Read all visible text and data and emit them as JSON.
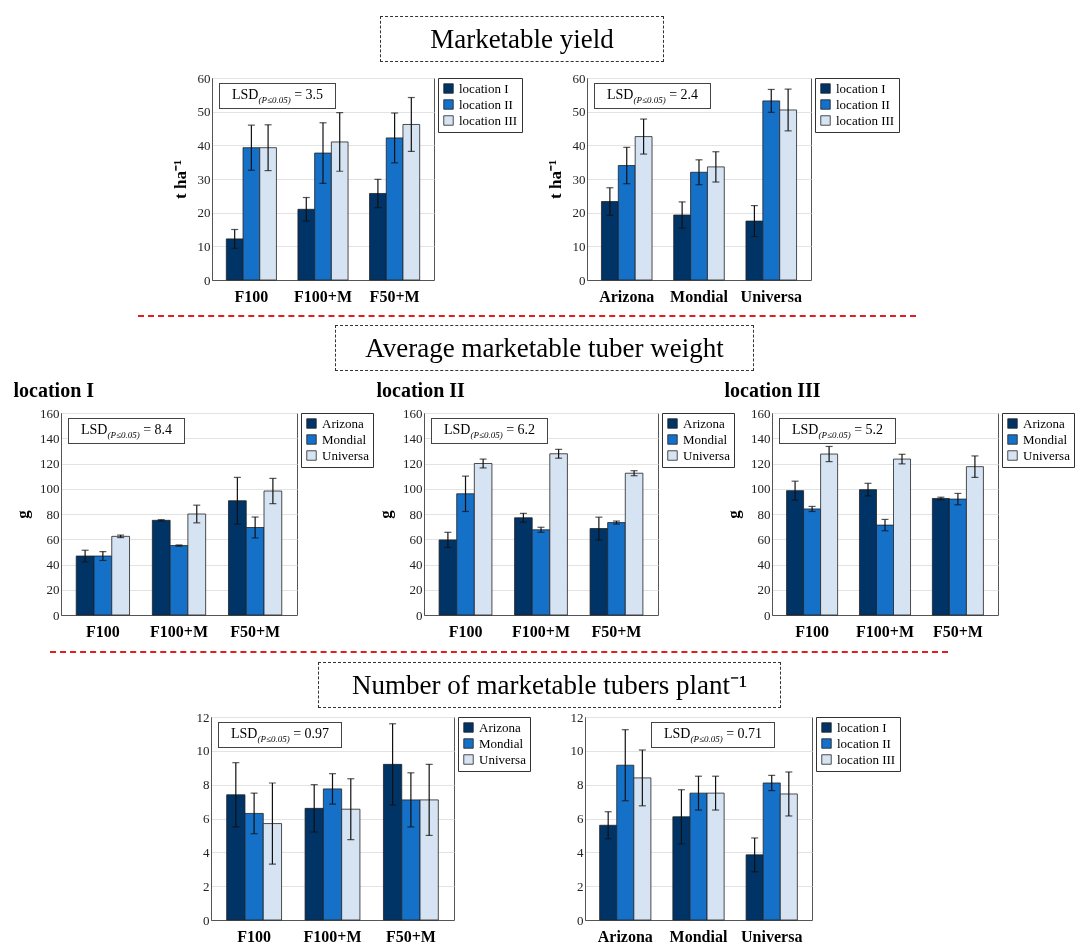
{
  "chart_data": [
    {
      "type": "bar",
      "title": "Marketable yield",
      "ylabel": "t ha⁻¹",
      "categories": [
        "F100",
        "F100+M",
        "F50+M"
      ],
      "ylim": [
        0,
        60
      ],
      "yticks": [
        0,
        10,
        20,
        30,
        40,
        50,
        60
      ],
      "grid": "y",
      "legend": "right",
      "annotations": [
        "LSD$_{(P≤0.05)}$ = 3.5"
      ],
      "series": [
        {
          "name": "location I",
          "color": "#003366",
          "values": [
            12.2,
            21,
            25.7
          ],
          "errors": [
            2.8,
            3.5,
            4.2
          ]
        },
        {
          "name": "location II",
          "color": "#1570c8",
          "values": [
            39.3,
            37.7,
            42.2
          ],
          "errors": [
            6.7,
            9,
            7.4
          ]
        },
        {
          "name": "location III",
          "color": "#d6e3f2",
          "values": [
            39.3,
            41,
            46.2
          ],
          "errors": [
            6.8,
            8.7,
            8
          ]
        }
      ]
    },
    {
      "type": "bar",
      "ylabel": "t ha⁻¹",
      "categories": [
        "Arizona",
        "Mondial",
        "Universa"
      ],
      "ylim": [
        0,
        60
      ],
      "yticks": [
        0,
        10,
        20,
        30,
        40,
        50,
        60
      ],
      "grid": "y",
      "legend": "right",
      "annotations": [
        "LSD$_{(P≤0.05)}$ = 2.4"
      ],
      "series": [
        {
          "name": "location I",
          "color": "#003366",
          "values": [
            23.3,
            19.3,
            17.5
          ],
          "errors": [
            4.1,
            3.9,
            4.6
          ]
        },
        {
          "name": "location II",
          "color": "#1570c8",
          "values": [
            34,
            32,
            53.2
          ],
          "errors": [
            5.4,
            3.7,
            3.4
          ]
        },
        {
          "name": "location III",
          "color": "#d6e3f2",
          "values": [
            42.6,
            33.6,
            50.5
          ],
          "errors": [
            5.2,
            4.5,
            6.2
          ]
        }
      ]
    },
    {
      "type": "bar",
      "subtitle": "location I",
      "ylabel": "g",
      "categories": [
        "F100",
        "F100+M",
        "F50+M"
      ],
      "ylim": [
        0,
        160
      ],
      "yticks": [
        0,
        20,
        40,
        60,
        80,
        100,
        120,
        140,
        160
      ],
      "grid": "y",
      "legend": "right",
      "annotations": [
        "LSD$_{(P≤0.05)}$ = 8.4"
      ],
      "series": [
        {
          "name": "Arizona",
          "color": "#003366",
          "values": [
            46.7,
            75,
            90.5
          ],
          "errors": [
            4.6,
            0.5,
            18.5
          ]
        },
        {
          "name": "Mondial",
          "color": "#1570c8",
          "values": [
            46.7,
            55,
            69.3
          ],
          "errors": [
            3.5,
            0.5,
            8.3
          ]
        },
        {
          "name": "Universa",
          "color": "#d6e3f2",
          "values": [
            62.3,
            80,
            98.2
          ],
          "errors": [
            1,
            7,
            10
          ]
        }
      ]
    },
    {
      "type": "bar",
      "title": "Average marketable tuber weight",
      "subtitle": "location II",
      "ylabel": "g",
      "categories": [
        "F100",
        "F100+M",
        "F50+M"
      ],
      "ylim": [
        0,
        160
      ],
      "yticks": [
        0,
        20,
        40,
        60,
        80,
        100,
        120,
        140,
        160
      ],
      "grid": "y",
      "legend": "right",
      "annotations": [
        "LSD$_{(P≤0.05)}$ = 6.2"
      ],
      "series": [
        {
          "name": "Arizona",
          "color": "#003366",
          "values": [
            59.5,
            77,
            68.5
          ],
          "errors": [
            6,
            3.5,
            9
          ]
        },
        {
          "name": "Mondial",
          "color": "#1570c8",
          "values": [
            96,
            67.5,
            73.2
          ],
          "errors": [
            14,
            2,
            1.2
          ]
        },
        {
          "name": "Universa",
          "color": "#d6e3f2",
          "values": [
            120,
            127.7,
            112.3
          ],
          "errors": [
            3.5,
            3.5,
            2
          ]
        }
      ]
    },
    {
      "type": "bar",
      "subtitle": "location III",
      "ylabel": "g",
      "categories": [
        "F100",
        "F100+M",
        "F50+M"
      ],
      "ylim": [
        0,
        160
      ],
      "yticks": [
        0,
        20,
        40,
        60,
        80,
        100,
        120,
        140,
        160
      ],
      "grid": "y",
      "legend": "right",
      "annotations": [
        "LSD$_{(P≤0.05)}$ = 5.2"
      ],
      "series": [
        {
          "name": "Arizona",
          "color": "#003366",
          "values": [
            98.5,
            99.3,
            92.3
          ],
          "errors": [
            7.5,
            5,
            1
          ]
        },
        {
          "name": "Mondial",
          "color": "#1570c8",
          "values": [
            84,
            71.2,
            91.8
          ],
          "errors": [
            2,
            4.5,
            4.5
          ]
        },
        {
          "name": "Universa",
          "color": "#d6e3f2",
          "values": [
            127.5,
            123.5,
            117.5
          ],
          "errors": [
            6,
            3.8,
            8.5
          ]
        }
      ]
    },
    {
      "type": "bar",
      "title": "Number of marketable tubers plant⁻¹",
      "categories": [
        "F100",
        "F100+M",
        "F50+M"
      ],
      "ylim": [
        0,
        12
      ],
      "yticks": [
        0,
        2,
        4,
        6,
        8,
        10,
        12
      ],
      "grid": "y",
      "legend": "right",
      "annotations": [
        "LSD$_{(P≤0.05)}$ = 0.97"
      ],
      "series": [
        {
          "name": "Arizona",
          "color": "#003366",
          "values": [
            7.4,
            6.6,
            9.2
          ],
          "errors": [
            1.9,
            1.4,
            2.4
          ]
        },
        {
          "name": "Mondial",
          "color": "#1570c8",
          "values": [
            6.3,
            7.75,
            7.1
          ],
          "errors": [
            1.2,
            0.9,
            1.6
          ]
        },
        {
          "name": "Universa",
          "color": "#d6e3f2",
          "values": [
            5.7,
            6.55,
            7.1
          ],
          "errors": [
            2.4,
            1.8,
            2.1
          ]
        }
      ]
    },
    {
      "type": "bar",
      "categories": [
        "Arizona",
        "Mondial",
        "Universa"
      ],
      "ylim": [
        0,
        12
      ],
      "yticks": [
        0,
        2,
        4,
        6,
        8,
        10,
        12
      ],
      "grid": "y",
      "legend": "right",
      "annotations": [
        "LSD$_{(P≤0.05)}$ = 0.71"
      ],
      "series": [
        {
          "name": "location I",
          "color": "#003366",
          "values": [
            5.6,
            6.1,
            3.85
          ],
          "errors": [
            0.8,
            1.6,
            1
          ]
        },
        {
          "name": "location II",
          "color": "#1570c8",
          "values": [
            9.15,
            7.5,
            8.1
          ],
          "errors": [
            2.1,
            1,
            0.45
          ]
        },
        {
          "name": "location III",
          "color": "#d6e3f2",
          "values": [
            8.4,
            7.5,
            7.45
          ],
          "errors": [
            1.65,
            1,
            1.3
          ]
        }
      ]
    }
  ]
}
